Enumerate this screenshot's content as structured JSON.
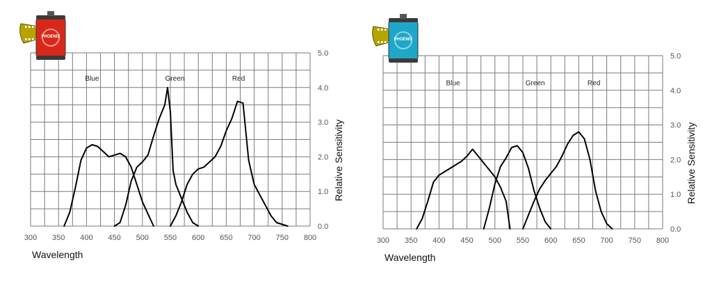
{
  "chart_data": [
    {
      "type": "line",
      "xlabel": "Wavelength",
      "ylabel": "Relative Sensitivity",
      "xlim": [
        300,
        800
      ],
      "ylim": [
        0,
        5
      ],
      "x_ticks": [
        "300",
        "350",
        "400",
        "450",
        "500",
        "550",
        "600",
        "650",
        "700",
        "750",
        "800"
      ],
      "y_ticks": [
        "0.0",
        "1.0",
        "2.0",
        "3.0",
        "4.0",
        "5.0"
      ],
      "grid": true,
      "series": [
        {
          "name": "Blue",
          "label_at": [
            410,
            4.2
          ],
          "color": "#000000",
          "points": [
            [
              360,
              0
            ],
            [
              370,
              0.4
            ],
            [
              380,
              1.1
            ],
            [
              390,
              1.9
            ],
            [
              400,
              2.25
            ],
            [
              410,
              2.35
            ],
            [
              420,
              2.3
            ],
            [
              430,
              2.15
            ],
            [
              440,
              2.0
            ],
            [
              450,
              2.05
            ],
            [
              460,
              2.1
            ],
            [
              470,
              2.0
            ],
            [
              480,
              1.7
            ],
            [
              490,
              1.2
            ],
            [
              500,
              0.7
            ],
            [
              510,
              0.35
            ],
            [
              520,
              0
            ]
          ]
        },
        {
          "name": "Green",
          "label_at": [
            558,
            4.2
          ],
          "color": "#000000",
          "points": [
            [
              450,
              0
            ],
            [
              460,
              0.1
            ],
            [
              470,
              0.6
            ],
            [
              480,
              1.3
            ],
            [
              490,
              1.7
            ],
            [
              500,
              1.85
            ],
            [
              510,
              2.05
            ],
            [
              520,
              2.6
            ],
            [
              530,
              3.1
            ],
            [
              540,
              3.5
            ],
            [
              545,
              4.0
            ],
            [
              550,
              3.3
            ],
            [
              555,
              1.6
            ],
            [
              560,
              1.2
            ],
            [
              570,
              0.8
            ],
            [
              580,
              0.4
            ],
            [
              590,
              0.1
            ],
            [
              600,
              0
            ]
          ]
        },
        {
          "name": "Red",
          "label_at": [
            672,
            4.2
          ],
          "color": "#000000",
          "points": [
            [
              550,
              0
            ],
            [
              560,
              0.3
            ],
            [
              570,
              0.7
            ],
            [
              580,
              1.2
            ],
            [
              590,
              1.5
            ],
            [
              600,
              1.65
            ],
            [
              610,
              1.7
            ],
            [
              620,
              1.85
            ],
            [
              630,
              2.0
            ],
            [
              640,
              2.3
            ],
            [
              650,
              2.75
            ],
            [
              660,
              3.1
            ],
            [
              670,
              3.6
            ],
            [
              680,
              3.55
            ],
            [
              690,
              1.9
            ],
            [
              700,
              1.2
            ],
            [
              710,
              0.9
            ],
            [
              720,
              0.6
            ],
            [
              730,
              0.3
            ],
            [
              740,
              0.1
            ],
            [
              760,
              0
            ]
          ]
        }
      ],
      "film_can": {
        "brand": "PHOENIX",
        "color": "#d8281a"
      }
    },
    {
      "type": "line",
      "xlabel": "Wavelength",
      "ylabel": "Relative Sensitivity",
      "xlim": [
        300,
        800
      ],
      "ylim": [
        0,
        5
      ],
      "x_ticks": [
        "300",
        "350",
        "400",
        "450",
        "500",
        "550",
        "600",
        "650",
        "700",
        "750",
        "800"
      ],
      "y_ticks": [
        "0.0",
        "1.0",
        "2.0",
        "3.0",
        "4.0",
        "5.0"
      ],
      "grid": true,
      "series": [
        {
          "name": "Blue",
          "label_at": [
            425,
            4.15
          ],
          "color": "#000000",
          "points": [
            [
              360,
              0
            ],
            [
              370,
              0.3
            ],
            [
              380,
              0.8
            ],
            [
              390,
              1.35
            ],
            [
              400,
              1.55
            ],
            [
              420,
              1.75
            ],
            [
              440,
              1.95
            ],
            [
              450,
              2.1
            ],
            [
              460,
              2.3
            ],
            [
              470,
              2.1
            ],
            [
              480,
              1.9
            ],
            [
              490,
              1.7
            ],
            [
              500,
              1.5
            ],
            [
              510,
              1.2
            ],
            [
              520,
              0.8
            ],
            [
              527,
              0
            ]
          ]
        },
        {
          "name": "Green",
          "label_at": [
            572,
            4.15
          ],
          "color": "#000000",
          "points": [
            [
              480,
              0
            ],
            [
              490,
              0.6
            ],
            [
              500,
              1.3
            ],
            [
              510,
              1.8
            ],
            [
              520,
              2.05
            ],
            [
              530,
              2.35
            ],
            [
              540,
              2.4
            ],
            [
              550,
              2.2
            ],
            [
              560,
              1.75
            ],
            [
              570,
              1.1
            ],
            [
              580,
              0.6
            ],
            [
              590,
              0.2
            ],
            [
              600,
              0
            ]
          ]
        },
        {
          "name": "Red",
          "label_at": [
            677,
            4.15
          ],
          "color": "#000000",
          "points": [
            [
              550,
              0
            ],
            [
              560,
              0.4
            ],
            [
              570,
              0.8
            ],
            [
              580,
              1.15
            ],
            [
              590,
              1.4
            ],
            [
              600,
              1.6
            ],
            [
              610,
              1.8
            ],
            [
              620,
              2.1
            ],
            [
              630,
              2.45
            ],
            [
              640,
              2.7
            ],
            [
              650,
              2.8
            ],
            [
              660,
              2.6
            ],
            [
              670,
              2.0
            ],
            [
              680,
              1.1
            ],
            [
              690,
              0.5
            ],
            [
              700,
              0.15
            ],
            [
              710,
              0
            ]
          ]
        }
      ],
      "film_can": {
        "brand": "PHOENIX",
        "color": "#1ea7c9"
      }
    }
  ]
}
